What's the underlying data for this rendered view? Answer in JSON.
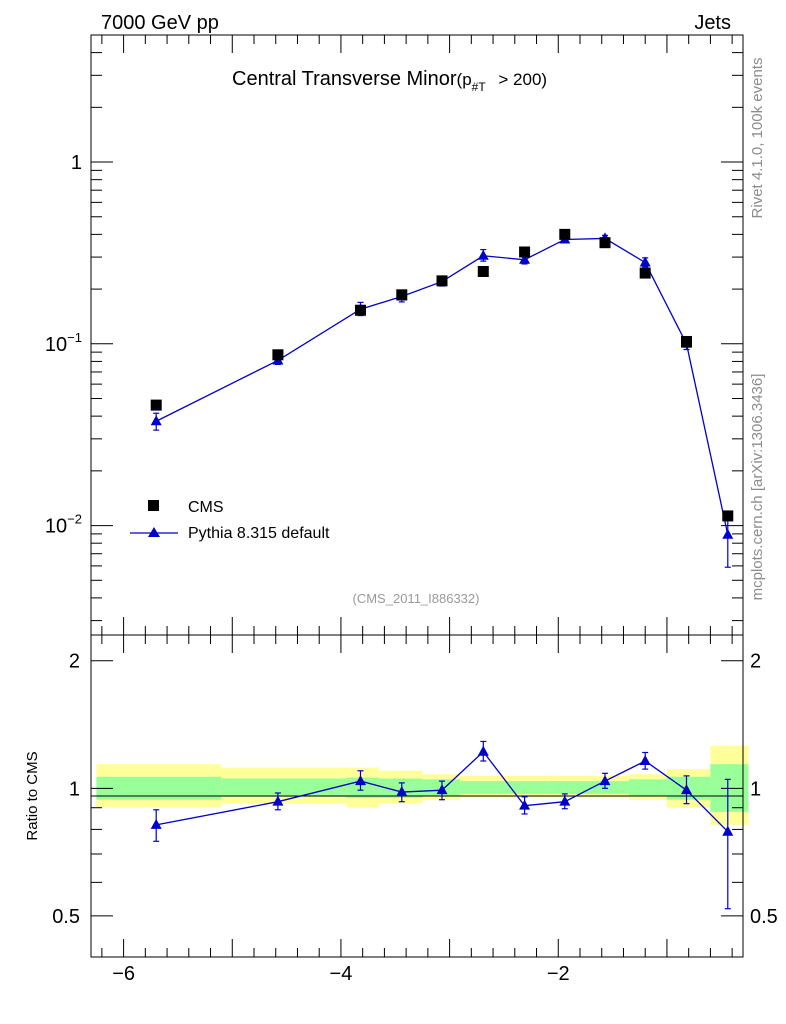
{
  "header": {
    "left": "7000 GeV pp",
    "right": "Jets"
  },
  "side_labels": {
    "rivet": "Rivet 4.1.0,  100k events",
    "mcplots": "mcplots.cern.ch [arXiv:1306.3436]"
  },
  "caption": "(CMS_2011_I886332)",
  "colors": {
    "data": "#000000",
    "mc": "#0000cc",
    "band_inner": "#99ff99",
    "band_outer": "#ffff99"
  },
  "chart_data": [
    {
      "type": "scatter",
      "panel": "main",
      "title": "Central Transverse Minor",
      "title_paren": "(p",
      "title_sub": "#T",
      "title_tail": " > 200)",
      "xlim": [
        -6.3,
        -0.3
      ],
      "ylim": [
        0.0025,
        5
      ],
      "yscale": "log",
      "ytick_labels": [
        {
          "value": 1,
          "base": "1",
          "exp": ""
        },
        {
          "value": 0.1,
          "base": "10",
          "exp": "−1"
        },
        {
          "value": 0.01,
          "base": "10",
          "exp": "−2"
        }
      ],
      "legend": [
        {
          "name": "CMS",
          "marker": "square"
        },
        {
          "name": "Pythia 8.315 default",
          "marker": "triangle-line"
        }
      ],
      "series": [
        {
          "name": "CMS",
          "x": [
            -5.7,
            -4.58,
            -3.82,
            -3.44,
            -3.07,
            -2.69,
            -2.31,
            -1.94,
            -1.57,
            -1.2,
            -0.82,
            -0.44
          ],
          "y": [
            0.046,
            0.087,
            0.153,
            0.186,
            0.222,
            0.25,
            0.32,
            0.4,
            0.36,
            0.245,
            0.103,
            0.0113
          ]
        },
        {
          "name": "Pythia 8.315 default",
          "x": [
            -5.7,
            -4.58,
            -3.82,
            -3.44,
            -3.07,
            -2.69,
            -2.31,
            -1.94,
            -1.57,
            -1.2,
            -0.82,
            -0.44
          ],
          "y": [
            0.0375,
            0.081,
            0.155,
            0.182,
            0.22,
            0.305,
            0.29,
            0.375,
            0.38,
            0.28,
            0.1,
            0.0089
          ],
          "err_low": [
            0.004,
            0.004,
            0.012,
            0.012,
            0.012,
            0.02,
            0.015,
            0.015,
            0.015,
            0.015,
            0.007,
            0.003
          ],
          "err_high": [
            0.004,
            0.004,
            0.014,
            0.014,
            0.012,
            0.025,
            0.017,
            0.017,
            0.015,
            0.017,
            0.008,
            0.003
          ]
        }
      ]
    },
    {
      "type": "scatter",
      "panel": "ratio",
      "ylabel": "Ratio to CMS",
      "xlim": [
        -6.3,
        -0.3
      ],
      "ylim": [
        0.4,
        2.3
      ],
      "yscale": "log",
      "xticks": [
        -6,
        -4,
        -2
      ],
      "xtick_labels": [
        "−6",
        "−4",
        "−2"
      ],
      "yticks": [
        0.5,
        1,
        2
      ],
      "ytick_labels": [
        "0.5",
        "1",
        "2"
      ],
      "bands": [
        {
          "x0": -6.25,
          "x1": -5.1,
          "inner": [
            0.94,
            1.065
          ],
          "outer": [
            0.9,
            1.14
          ]
        },
        {
          "x0": -5.1,
          "x1": -3.95,
          "inner": [
            0.955,
            1.055
          ],
          "outer": [
            0.92,
            1.12
          ]
        },
        {
          "x0": -3.95,
          "x1": -3.65,
          "inner": [
            0.95,
            1.06
          ],
          "outer": [
            0.9,
            1.12
          ]
        },
        {
          "x0": -3.65,
          "x1": -3.25,
          "inner": [
            0.95,
            1.055
          ],
          "outer": [
            0.92,
            1.1
          ]
        },
        {
          "x0": -3.25,
          "x1": -2.9,
          "inner": [
            0.96,
            1.05
          ],
          "outer": [
            0.94,
            1.08
          ]
        },
        {
          "x0": -2.9,
          "x1": -2.1,
          "inner": [
            0.97,
            1.04
          ],
          "outer": [
            0.95,
            1.07
          ]
        },
        {
          "x0": -2.1,
          "x1": -1.35,
          "inner": [
            0.97,
            1.04
          ],
          "outer": [
            0.95,
            1.07
          ]
        },
        {
          "x0": -1.35,
          "x1": -1.0,
          "inner": [
            0.96,
            1.05
          ],
          "outer": [
            0.94,
            1.08
          ]
        },
        {
          "x0": -1.0,
          "x1": -0.6,
          "inner": [
            0.94,
            1.065
          ],
          "outer": [
            0.9,
            1.11
          ]
        },
        {
          "x0": -0.6,
          "x1": -0.25,
          "inner": [
            0.88,
            1.14
          ],
          "outer": [
            0.82,
            1.26
          ]
        }
      ],
      "series": [
        {
          "name": "Pythia 8.315 default",
          "x": [
            -5.7,
            -4.58,
            -3.82,
            -3.44,
            -3.07,
            -2.69,
            -2.31,
            -1.94,
            -1.57,
            -1.2,
            -0.82,
            -0.44
          ],
          "y": [
            0.82,
            0.93,
            1.04,
            0.98,
            0.99,
            1.22,
            0.91,
            0.93,
            1.04,
            1.16,
            0.99,
            0.79
          ],
          "err_low": [
            0.07,
            0.04,
            0.05,
            0.05,
            0.05,
            0.06,
            0.04,
            0.035,
            0.04,
            0.05,
            0.07,
            0.27
          ],
          "err_high": [
            0.07,
            0.045,
            0.06,
            0.05,
            0.05,
            0.07,
            0.045,
            0.04,
            0.045,
            0.055,
            0.08,
            0.26
          ]
        }
      ]
    }
  ]
}
